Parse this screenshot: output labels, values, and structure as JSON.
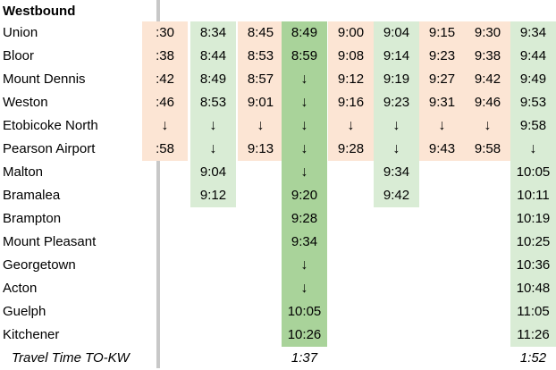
{
  "direction": "Westbound",
  "travel_time_label": "Travel Time TO-KW",
  "stations": [
    "Union",
    "Bloor",
    "Mount Dennis",
    "Weston",
    "Etobicoke North",
    "Pearson Airport",
    "Malton",
    "Bramalea",
    "Brampton",
    "Mount Pleasant",
    "Georgetown",
    "Acton",
    "Guelph",
    "Kitchener"
  ],
  "arrow": "↓",
  "colors": {
    "orange": "#fce5d4",
    "light_green": "#d9ecd5",
    "green": "#a9d39a",
    "divider": "#c8c8c8"
  },
  "trips": [
    {
      "fill": "orange",
      "times": [
        ":30",
        ":38",
        ":42",
        ":46",
        "↓",
        ":58",
        "",
        "",
        "",
        "",
        "",
        "",
        "",
        ""
      ],
      "travel_time": ""
    },
    {
      "fill": "light_green",
      "times": [
        "8:34",
        "8:44",
        "8:49",
        "8:53",
        "↓",
        "↓",
        "9:04",
        "9:12",
        "",
        "",
        "",
        "",
        "",
        ""
      ],
      "travel_time": ""
    },
    {
      "fill": "orange",
      "times": [
        "8:45",
        "8:53",
        "8:57",
        "9:01",
        "↓",
        "9:13",
        "",
        "",
        "",
        "",
        "",
        "",
        "",
        ""
      ],
      "travel_time": ""
    },
    {
      "fill": "green",
      "times": [
        "8:49",
        "8:59",
        "↓",
        "↓",
        "↓",
        "↓",
        "↓",
        "9:20",
        "9:28",
        "9:34",
        "↓",
        "↓",
        "10:05",
        "10:26"
      ],
      "travel_time": "1:37"
    },
    {
      "fill": "orange",
      "times": [
        "9:00",
        "9:08",
        "9:12",
        "9:16",
        "↓",
        "9:28",
        "",
        "",
        "",
        "",
        "",
        "",
        "",
        ""
      ],
      "travel_time": ""
    },
    {
      "fill": "light_green",
      "times": [
        "9:04",
        "9:14",
        "9:19",
        "9:23",
        "↓",
        "↓",
        "9:34",
        "9:42",
        "",
        "",
        "",
        "",
        "",
        ""
      ],
      "travel_time": ""
    },
    {
      "fill": "orange",
      "times": [
        "9:15",
        "9:23",
        "9:27",
        "9:31",
        "↓",
        "9:43",
        "",
        "",
        "",
        "",
        "",
        "",
        "",
        ""
      ],
      "travel_time": ""
    },
    {
      "fill": "orange",
      "times": [
        "9:30",
        "9:38",
        "9:42",
        "9:46",
        "↓",
        "9:58",
        "",
        "",
        "",
        "",
        "",
        "",
        "",
        ""
      ],
      "travel_time": ""
    },
    {
      "fill": "light_green",
      "times": [
        "9:34",
        "9:44",
        "9:49",
        "9:53",
        "9:58",
        "↓",
        "10:05",
        "10:11",
        "10:19",
        "10:25",
        "10:36",
        "10:48",
        "11:05",
        "11:26"
      ],
      "travel_time": "1:52"
    }
  ]
}
